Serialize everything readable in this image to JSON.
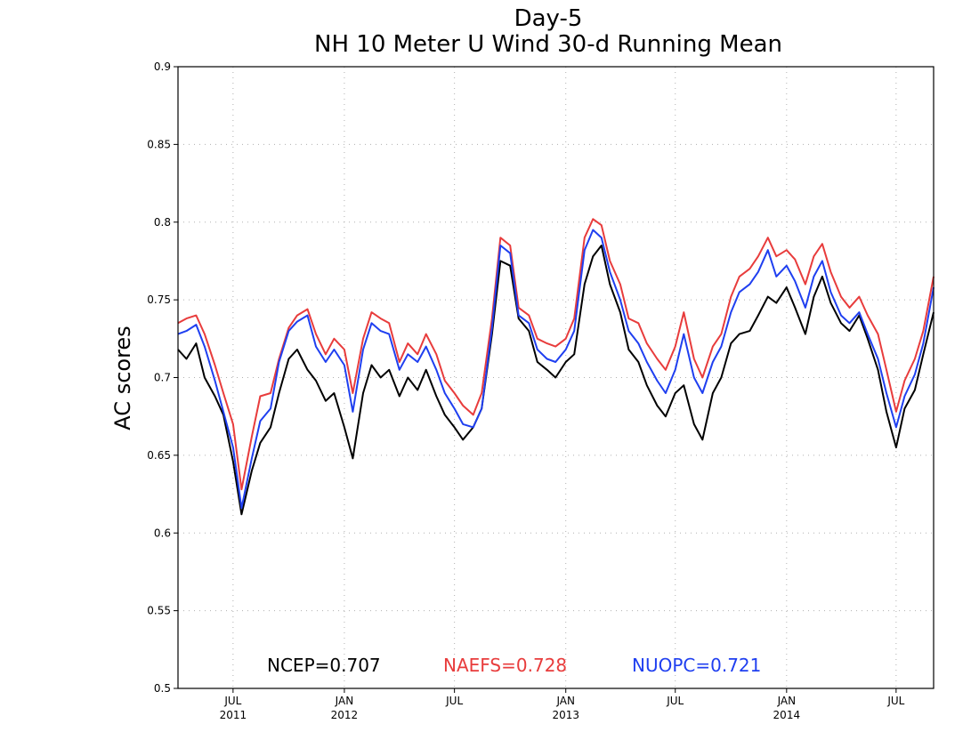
{
  "chart_data": {
    "type": "line",
    "title": "Day-5",
    "subtitle": "NH 10 Meter U Wind 30-d Running Mean",
    "xlabel": "",
    "ylabel": "AC scores",
    "ylim": [
      0.5,
      0.9
    ],
    "yticks": [
      0.5,
      0.55,
      0.6,
      0.65,
      0.7,
      0.75,
      0.8,
      0.85,
      0.9
    ],
    "ytick_labels": [
      "0.5",
      "0.55",
      "0.6",
      "0.65",
      "0.7",
      "0.75",
      "0.8",
      "0.85",
      "0.9"
    ],
    "xlim": [
      "2011-04-01",
      "2014-09-01"
    ],
    "xticks": [
      {
        "date": "2011-07-01",
        "label": "JUL",
        "year": "2011"
      },
      {
        "date": "2012-01-01",
        "label": "JAN",
        "year": "2012"
      },
      {
        "date": "2012-07-01",
        "label": "JUL",
        "year": ""
      },
      {
        "date": "2013-01-01",
        "label": "JAN",
        "year": "2013"
      },
      {
        "date": "2013-07-01",
        "label": "JUL",
        "year": ""
      },
      {
        "date": "2014-01-01",
        "label": "JAN",
        "year": "2014"
      },
      {
        "date": "2014-07-01",
        "label": "JUL",
        "year": ""
      }
    ],
    "grid": true,
    "legend": [
      {
        "text": "NCEP=0.707",
        "color": "#000000"
      },
      {
        "text": "NAEFS=0.728",
        "color": "#e83c3c"
      },
      {
        "text": "NUOPC=0.721",
        "color": "#1f3ff0"
      }
    ],
    "x": [
      "2011-04-01",
      "2011-04-15",
      "2011-05-01",
      "2011-05-15",
      "2011-06-01",
      "2011-06-15",
      "2011-07-01",
      "2011-07-15",
      "2011-08-01",
      "2011-08-15",
      "2011-09-01",
      "2011-09-15",
      "2011-10-01",
      "2011-10-15",
      "2011-11-01",
      "2011-11-15",
      "2011-12-01",
      "2011-12-15",
      "2012-01-01",
      "2012-01-15",
      "2012-02-01",
      "2012-02-15",
      "2012-03-01",
      "2012-03-15",
      "2012-04-01",
      "2012-04-15",
      "2012-05-01",
      "2012-05-15",
      "2012-06-01",
      "2012-06-15",
      "2012-07-01",
      "2012-07-15",
      "2012-08-01",
      "2012-08-15",
      "2012-09-01",
      "2012-09-15",
      "2012-10-01",
      "2012-10-15",
      "2012-11-01",
      "2012-11-15",
      "2012-12-01",
      "2012-12-15",
      "2013-01-01",
      "2013-01-15",
      "2013-02-01",
      "2013-02-15",
      "2013-03-01",
      "2013-03-15",
      "2013-04-01",
      "2013-04-15",
      "2013-05-01",
      "2013-05-15",
      "2013-06-01",
      "2013-06-15",
      "2013-07-01",
      "2013-07-15",
      "2013-08-01",
      "2013-08-15",
      "2013-09-01",
      "2013-09-15",
      "2013-10-01",
      "2013-10-15",
      "2013-11-01",
      "2013-11-15",
      "2013-12-01",
      "2013-12-15",
      "2014-01-01",
      "2014-01-15",
      "2014-02-01",
      "2014-02-15",
      "2014-03-01",
      "2014-03-15",
      "2014-04-01",
      "2014-04-15",
      "2014-05-01",
      "2014-05-15",
      "2014-06-01",
      "2014-06-15",
      "2014-07-01",
      "2014-07-15",
      "2014-08-01",
      "2014-08-15",
      "2014-09-01"
    ],
    "series": [
      {
        "name": "NCEP",
        "color": "#000000",
        "values": [
          0.718,
          0.712,
          0.722,
          0.7,
          0.688,
          0.676,
          0.646,
          0.612,
          0.64,
          0.658,
          0.668,
          0.69,
          0.712,
          0.718,
          0.705,
          0.698,
          0.685,
          0.69,
          0.668,
          0.648,
          0.69,
          0.708,
          0.7,
          0.705,
          0.688,
          0.7,
          0.692,
          0.705,
          0.688,
          0.676,
          0.668,
          0.66,
          0.668,
          0.68,
          0.728,
          0.775,
          0.772,
          0.738,
          0.73,
          0.71,
          0.705,
          0.7,
          0.71,
          0.715,
          0.76,
          0.778,
          0.785,
          0.76,
          0.742,
          0.718,
          0.71,
          0.695,
          0.682,
          0.675,
          0.69,
          0.695,
          0.67,
          0.66,
          0.69,
          0.7,
          0.722,
          0.728,
          0.73,
          0.74,
          0.752,
          0.748,
          0.758,
          0.745,
          0.728,
          0.752,
          0.765,
          0.748,
          0.735,
          0.73,
          0.74,
          0.725,
          0.705,
          0.678,
          0.655,
          0.68,
          0.692,
          0.715,
          0.742
        ]
      },
      {
        "name": "NAEFS",
        "color": "#e83c3c",
        "values": [
          0.735,
          0.738,
          0.74,
          0.728,
          0.708,
          0.69,
          0.67,
          0.628,
          0.662,
          0.688,
          0.69,
          0.712,
          0.732,
          0.74,
          0.744,
          0.728,
          0.715,
          0.725,
          0.718,
          0.69,
          0.725,
          0.742,
          0.738,
          0.735,
          0.71,
          0.722,
          0.715,
          0.728,
          0.715,
          0.698,
          0.69,
          0.682,
          0.676,
          0.69,
          0.738,
          0.79,
          0.785,
          0.745,
          0.74,
          0.725,
          0.722,
          0.72,
          0.725,
          0.738,
          0.79,
          0.802,
          0.798,
          0.775,
          0.76,
          0.738,
          0.735,
          0.722,
          0.712,
          0.705,
          0.72,
          0.742,
          0.712,
          0.7,
          0.72,
          0.728,
          0.752,
          0.765,
          0.77,
          0.778,
          0.79,
          0.778,
          0.782,
          0.776,
          0.76,
          0.778,
          0.786,
          0.768,
          0.752,
          0.745,
          0.752,
          0.74,
          0.728,
          0.705,
          0.678,
          0.698,
          0.712,
          0.73,
          0.765
        ]
      },
      {
        "name": "NUOPC",
        "color": "#1f3ff0",
        "values": [
          0.728,
          0.73,
          0.734,
          0.72,
          0.698,
          0.678,
          0.655,
          0.616,
          0.648,
          0.672,
          0.68,
          0.71,
          0.73,
          0.736,
          0.74,
          0.72,
          0.71,
          0.718,
          0.708,
          0.678,
          0.718,
          0.735,
          0.73,
          0.728,
          0.705,
          0.715,
          0.71,
          0.72,
          0.705,
          0.69,
          0.68,
          0.67,
          0.668,
          0.68,
          0.732,
          0.785,
          0.78,
          0.74,
          0.735,
          0.718,
          0.712,
          0.71,
          0.718,
          0.73,
          0.782,
          0.795,
          0.79,
          0.768,
          0.75,
          0.73,
          0.722,
          0.71,
          0.698,
          0.69,
          0.705,
          0.728,
          0.7,
          0.69,
          0.71,
          0.72,
          0.742,
          0.755,
          0.76,
          0.768,
          0.782,
          0.765,
          0.772,
          0.762,
          0.745,
          0.765,
          0.775,
          0.755,
          0.74,
          0.735,
          0.742,
          0.728,
          0.712,
          0.69,
          0.668,
          0.688,
          0.702,
          0.722,
          0.758
        ]
      }
    ]
  }
}
